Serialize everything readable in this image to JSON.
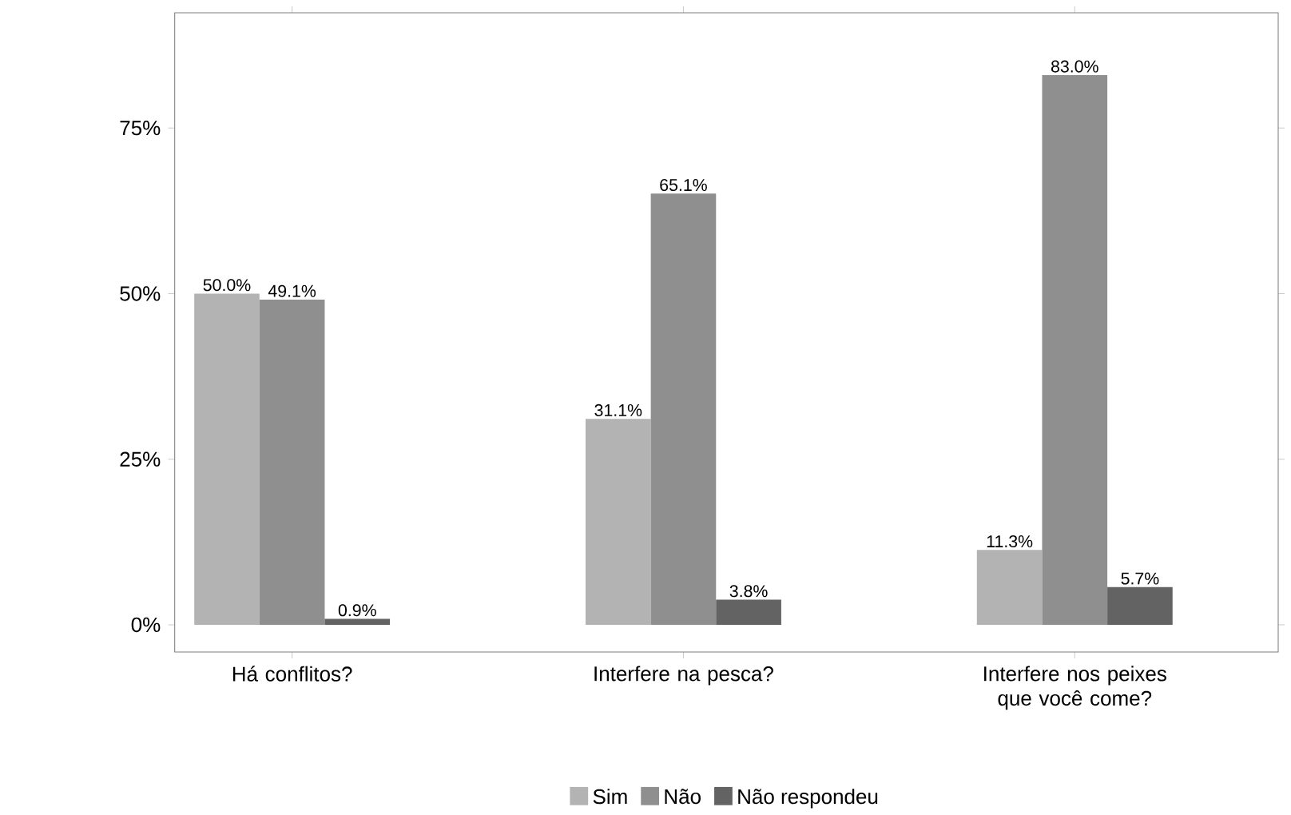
{
  "chart_data": {
    "type": "bar",
    "categories": [
      "Há conflitos?",
      "Interfere na pesca?",
      "Interfere nos peixes que você come?"
    ],
    "series": [
      {
        "name": "Sim",
        "color": "#b3b3b3",
        "values": [
          50.0,
          31.1,
          11.3
        ],
        "value_labels": [
          "50.0%",
          "31.1%",
          "11.3%"
        ]
      },
      {
        "name": "Não",
        "color": "#8f8f8f",
        "values": [
          49.1,
          65.1,
          83.0
        ],
        "value_labels": [
          "49.1%",
          "65.1%",
          "83.0%"
        ]
      },
      {
        "name": "Não respondeu",
        "color": "#636363",
        "values": [
          0.9,
          3.8,
          5.7
        ],
        "value_labels": [
          "0.9%",
          "3.8%",
          "5.7%"
        ]
      }
    ],
    "ylim": [
      -4.1,
      92.4
    ],
    "yticks": [
      {
        "value": 0,
        "label": "0%"
      },
      {
        "value": 25,
        "label": "25%"
      },
      {
        "value": 50,
        "label": "50%"
      },
      {
        "value": 75,
        "label": "75%"
      }
    ],
    "grid": false,
    "legend": "bottom"
  }
}
